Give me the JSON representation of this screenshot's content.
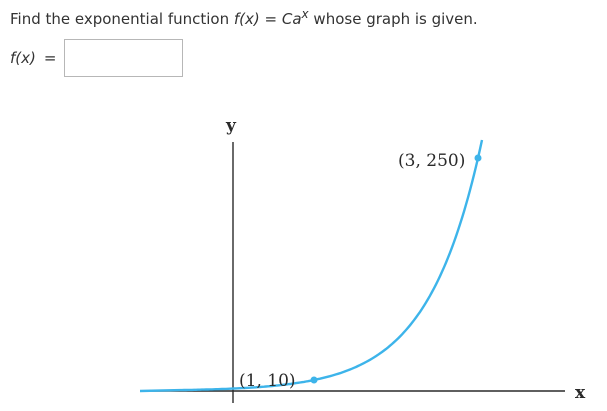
{
  "question": {
    "prefix": "Find the exponential function ",
    "fx": "f(x)",
    "equals": " = ",
    "coef": "Ca",
    "exponent": "x",
    "suffix": " whose graph is given."
  },
  "answer": {
    "label": "f(x)",
    "equals": "=",
    "value": "",
    "placeholder": ""
  },
  "graph": {
    "y_axis_label": "y",
    "x_axis_label": "x",
    "curve_color": "#3db4ea",
    "axis_color": "#2a2a2a",
    "points": [
      {
        "label": "(1, 10)"
      },
      {
        "label": "(3, 250)"
      }
    ]
  }
}
